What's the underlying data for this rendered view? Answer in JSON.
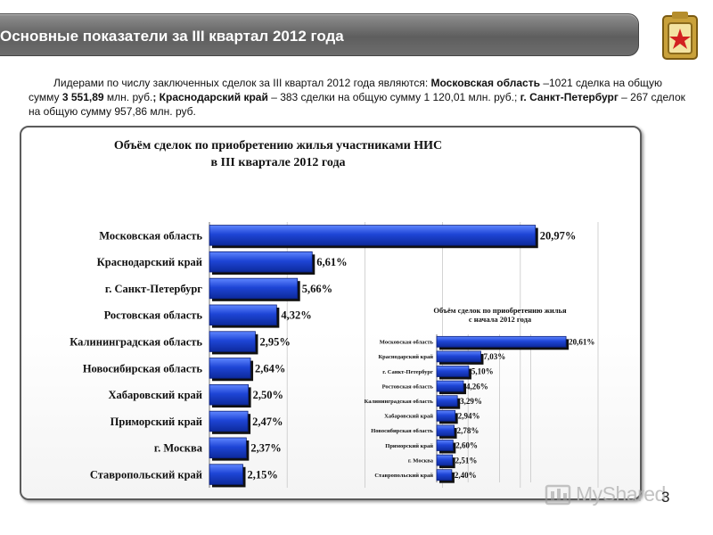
{
  "header": {
    "title": "Основные показатели за III квартал 2012 года"
  },
  "intro": {
    "p1": "Лидерами по числу заключенных сделок за III квартал 2012 года являются: ",
    "b1": "Московская область",
    "p2": " –1021 сделка на общую сумму ",
    "b2": "3 551,89",
    "p3": " млн. руб.",
    "b3": "; Краснодарский край",
    "p4": " – 383 сделки на общую сумму  1 120,01 млн. руб.; ",
    "b4": "г. Санкт-Петербург",
    "p5": " – 267 сделок на общую сумму 957,86 млн. руб."
  },
  "page_number": "3",
  "watermark": "MyShared",
  "chart_data": [
    {
      "type": "bar",
      "orientation": "horizontal",
      "title": "Объём сделок по приобретению жилья участниками НИС в III квартале 2012 года",
      "title_lines": [
        "Объём сделок по приобретению жилья участниками НИС",
        "в III квартале 2012 года"
      ],
      "categories": [
        "Московская область",
        "Краснодарский край",
        "г. Санкт-Петербург",
        "Ростовская область",
        "Калининградская область",
        "Новосибирская область",
        "Хабаровский край",
        "Приморский край",
        "г. Москва",
        "Ставропольский край"
      ],
      "values": [
        20.97,
        6.61,
        5.66,
        4.32,
        2.95,
        2.64,
        2.5,
        2.47,
        2.37,
        2.15
      ],
      "labels": [
        "20,97%",
        "6,61%",
        "5,66%",
        "4,32%",
        "2,95%",
        "2,64%",
        "2,50%",
        "2,47%",
        "2,37%",
        "2,15%"
      ],
      "xlim": [
        0,
        25
      ],
      "unit": "%",
      "grid": true,
      "bar_color": "#1b3fc8"
    },
    {
      "type": "bar",
      "orientation": "horizontal",
      "title": "Объём сделок по приобретению жилья с начала 2012 года",
      "title_lines": [
        "Объём сделок по приобретению жилья",
        "с начала 2012 года"
      ],
      "categories": [
        "Московская область",
        "Краснодарский край",
        "г. Санкт-Петербург",
        "Ростовская область",
        "Калининградская область",
        "Хабаровский край",
        "Новосибирская область",
        "Приморский край",
        "г. Москва",
        "Ставропольский край"
      ],
      "values": [
        20.61,
        7.03,
        5.1,
        4.26,
        3.29,
        2.94,
        2.78,
        2.6,
        2.51,
        2.4
      ],
      "labels": [
        "20,61%",
        "7,03%",
        "5,10%",
        "4,26%",
        "3,29%",
        "2,94%",
        "2,78%",
        "2,60%",
        "2,51%",
        "2,40%"
      ],
      "xlim": [
        0,
        25
      ],
      "unit": "%",
      "grid": true,
      "bar_color": "#1b3fc8"
    }
  ]
}
